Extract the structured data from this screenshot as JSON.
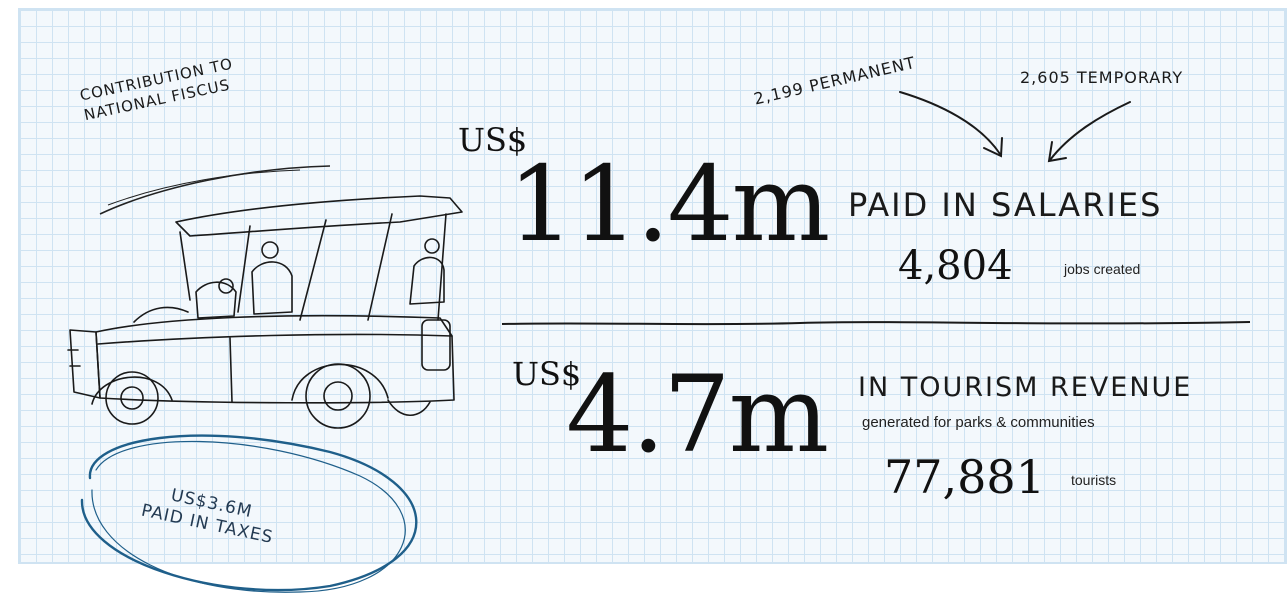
{
  "annotations": {
    "fiscus_line1": "CONTRIBUTION TO",
    "fiscus_line2": "NATIONAL FISCUS",
    "taxes_line1": "US$3.6M",
    "taxes_line2": "PAID IN TAXES",
    "permanent": "2,199 PERMANENT",
    "temporary": "2,605 TEMPORARY"
  },
  "salaries": {
    "currency": "US$",
    "amount": "11.4m",
    "label": "PAID IN SALARIES",
    "jobs_value": "4,804",
    "jobs_label": "jobs created"
  },
  "tourism": {
    "currency": "US$",
    "amount": "4.7m",
    "label": "IN TOURISM REVENUE",
    "sublabel": "generated for parks & communities",
    "tourists_value": "77,881",
    "tourists_label": "tourists"
  },
  "icons": {
    "vehicle": "safari-vehicle-sketch-icon",
    "oval": "hand-drawn-oval-icon",
    "arrows": "hand-drawn-arrow-icon"
  },
  "colors": {
    "grid_background": "#f3f8fc",
    "grid_line": "#cfe3f2",
    "ink": "#1a1a1a",
    "oval_ink": "#1f5f8a"
  }
}
